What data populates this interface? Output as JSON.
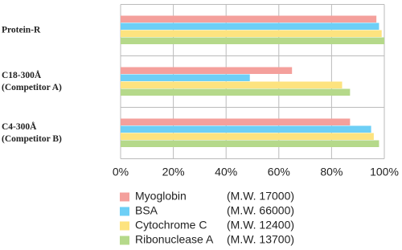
{
  "chart_data": {
    "type": "barh",
    "categories": [
      "Protein-R",
      "C18-300Å\n(Competitor A)",
      "C4-300Å\n(Competitor B)"
    ],
    "series": [
      {
        "name": "Myoglobin",
        "mw": "(M.W. 17000)",
        "color": "#f4a09c",
        "values": [
          97,
          65,
          87
        ]
      },
      {
        "name": "BSA",
        "mw": "(M.W. 66000)",
        "color": "#6dcff6",
        "values": [
          98,
          49,
          95
        ]
      },
      {
        "name": "Cytochrome C",
        "mw": "(M.W. 12400)",
        "color": "#fde37f",
        "values": [
          99,
          84,
          96
        ]
      },
      {
        "name": "Ribonuclease A",
        "mw": "(M.W. 13700)",
        "color": "#b5d98a",
        "values": [
          100,
          87,
          98
        ]
      }
    ],
    "xlim": [
      0,
      100
    ],
    "xticks": [
      {
        "value": 0,
        "label": "0%"
      },
      {
        "value": 20,
        "label": "20%"
      },
      {
        "value": 40,
        "label": "40%"
      },
      {
        "value": 60,
        "label": "60%"
      },
      {
        "value": 80,
        "label": "80%"
      },
      {
        "value": 100,
        "label": "100%"
      }
    ],
    "grid": true
  }
}
